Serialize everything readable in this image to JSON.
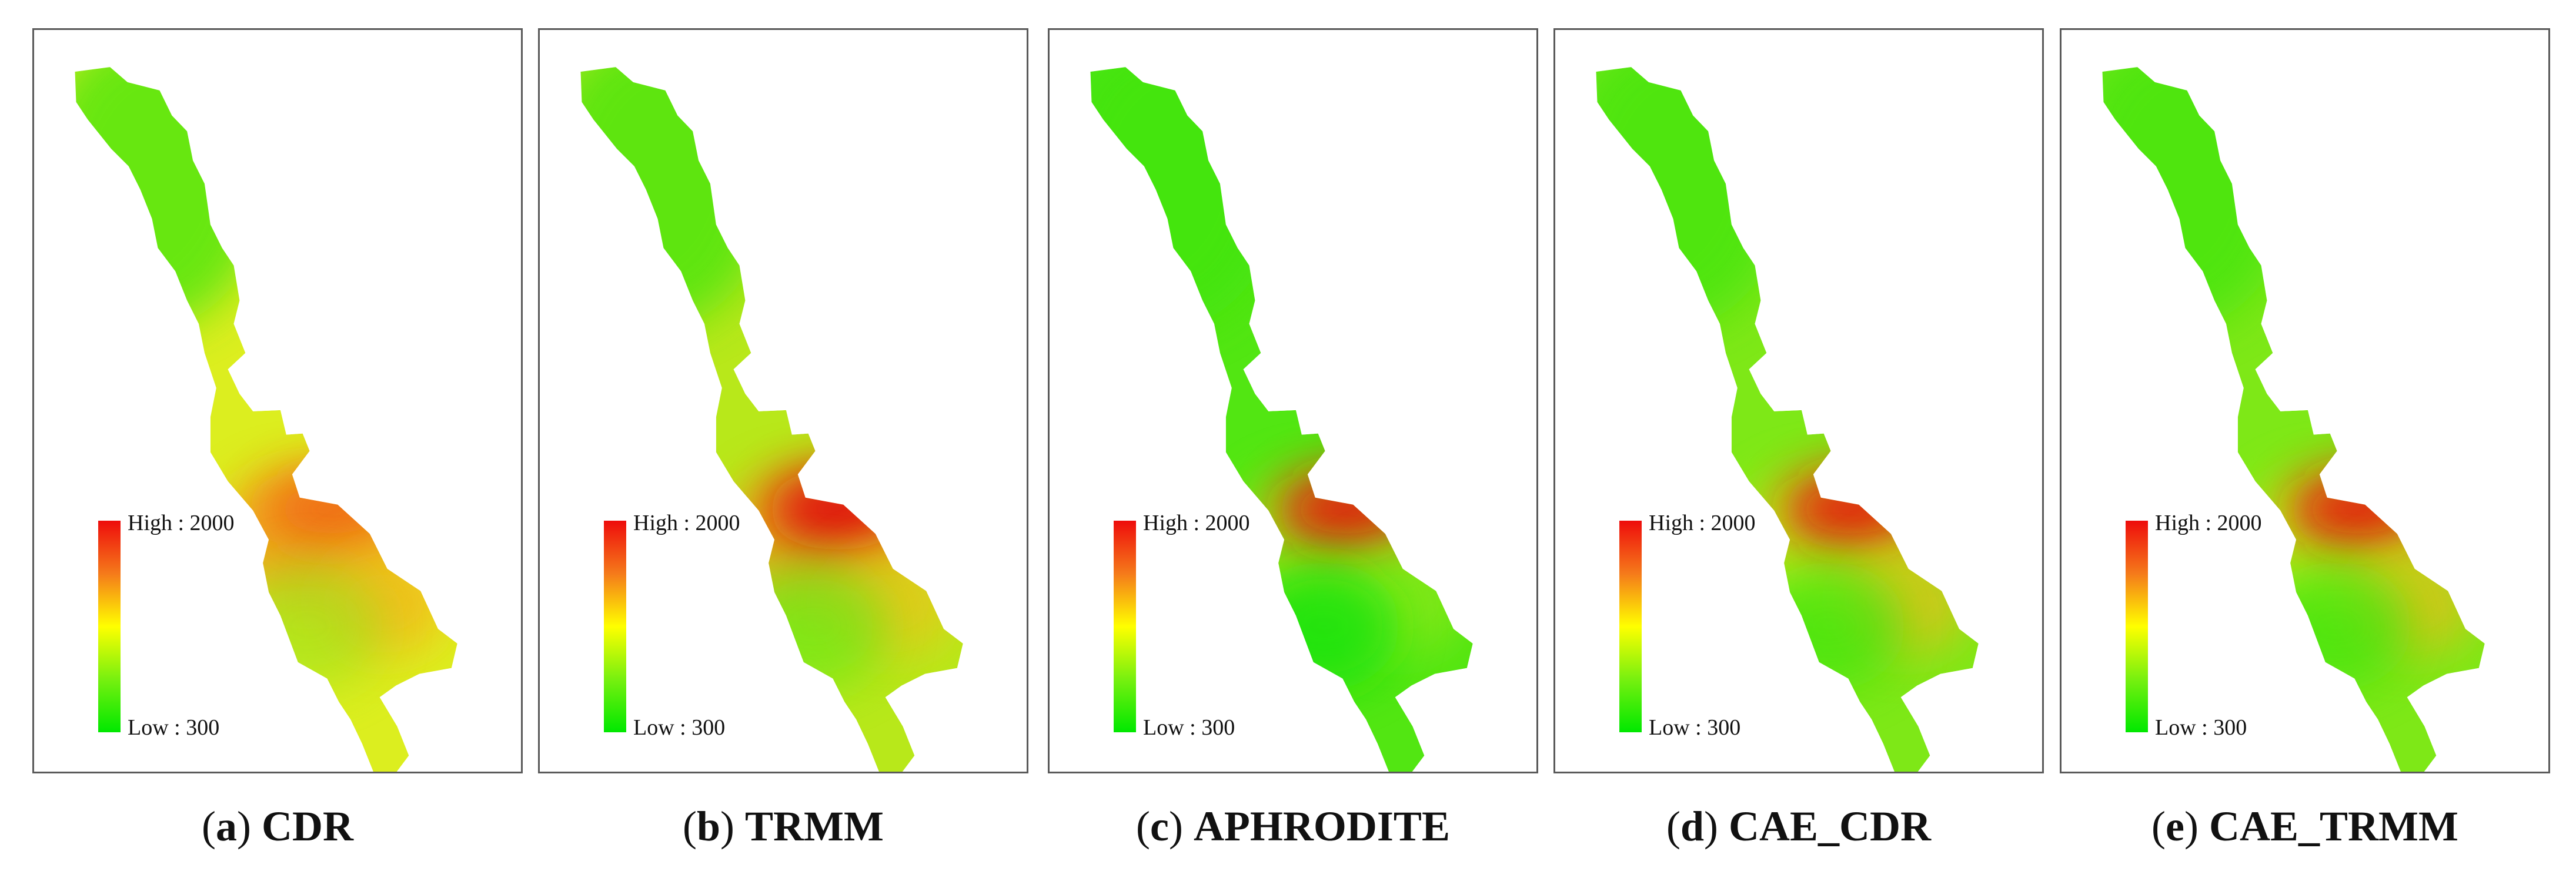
{
  "legend": {
    "high_label": "High : 2000",
    "low_label": "Low : 300",
    "colors": [
      "#ee0c0c",
      "#f57a1a",
      "#ffff00",
      "#77f00f",
      "#00e800"
    ]
  },
  "panels": [
    {
      "letter": "a",
      "name": "CDR",
      "base": "#dcee1f",
      "blobs": [
        {
          "c": "#f3a51d",
          "o": 0.9
        },
        {
          "c": "#f06a14",
          "o": 0.9
        },
        {
          "c": "#f6b81f",
          "o": 0.85
        },
        {
          "c": "#9ae21a",
          "o": 0.6
        }
      ]
    },
    {
      "letter": "b",
      "name": "TRMM",
      "base": "#b8e81a",
      "blobs": [
        {
          "c": "#f4a11b",
          "o": 0.7
        },
        {
          "c": "#e0100c",
          "o": 0.95
        },
        {
          "c": "#f5bf1f",
          "o": 0.7
        },
        {
          "c": "#5de814",
          "o": 0.6
        }
      ]
    },
    {
      "letter": "c",
      "name": "APHRODITE",
      "base": "#52e612",
      "blobs": [
        {
          "c": "#b7ea1c",
          "o": 0.7
        },
        {
          "c": "#e4140f",
          "o": 0.9
        },
        {
          "c": "#a6e91b",
          "o": 0.6
        },
        {
          "c": "#18e30c",
          "o": 0.8
        }
      ]
    },
    {
      "letter": "d",
      "name": "CAE_CDR",
      "base": "#7ee817",
      "blobs": [
        {
          "c": "#d7ee1c",
          "o": 0.7
        },
        {
          "c": "#e5170f",
          "o": 0.9
        },
        {
          "c": "#f4ba1e",
          "o": 0.7
        },
        {
          "c": "#3ee510",
          "o": 0.7
        }
      ]
    },
    {
      "letter": "e",
      "name": "CAE_TRMM",
      "base": "#7ee817",
      "blobs": [
        {
          "c": "#d7ee1c",
          "o": 0.7
        },
        {
          "c": "#e5170f",
          "o": 0.9
        },
        {
          "c": "#f4ba1e",
          "o": 0.7
        },
        {
          "c": "#3ee510",
          "o": 0.7
        }
      ]
    }
  ]
}
